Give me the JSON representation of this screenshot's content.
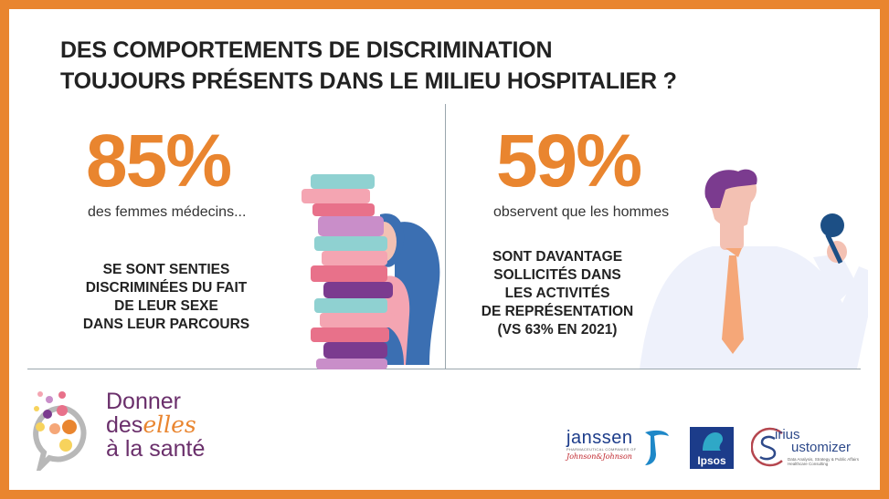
{
  "title": {
    "line1": "DES COMPORTEMENTS DE DISCRIMINATION",
    "line2": "TOUJOURS PRÉSENTS DANS LE MILIEU HOSPITALIER ?"
  },
  "left_stat": {
    "value": "85%",
    "subtitle": "des femmes médecins...",
    "description": [
      "SE SONT SENTIES",
      "DISCRIMINÉES DU FAIT",
      "DE LEUR SEXE",
      "DANS LEUR PARCOURS"
    ]
  },
  "right_stat": {
    "value": "59%",
    "subtitle": "observent que les hommes",
    "description": [
      "SONT DAVANTAGE",
      "SOLLICITÉS DANS",
      "LES ACTIVITÉS",
      "DE REPRÉSENTATION",
      "(vs 63% EN 2021)"
    ]
  },
  "brand": {
    "line1": "Donner",
    "line2_a": "des",
    "line2_b": "elles",
    "line3": "à la santé"
  },
  "partners": {
    "janssen_name": "janssen",
    "janssen_tagline": "PHARMACEUTICAL COMPANIES OF",
    "janssen_parent": "Johnson&Johnson",
    "ipsos": "Ipsos",
    "sirius_a": "irius",
    "sirius_b": "ustomizer",
    "sirius_tagline_1": "Data Analysis, Strategy & Public Affairs",
    "sirius_tagline_2": "Healthcare Consulting"
  },
  "colors": {
    "frame": "#e9852f",
    "accent": "#e9852f",
    "purple": "#6a2f6b",
    "blue": "#1c3c8a"
  }
}
